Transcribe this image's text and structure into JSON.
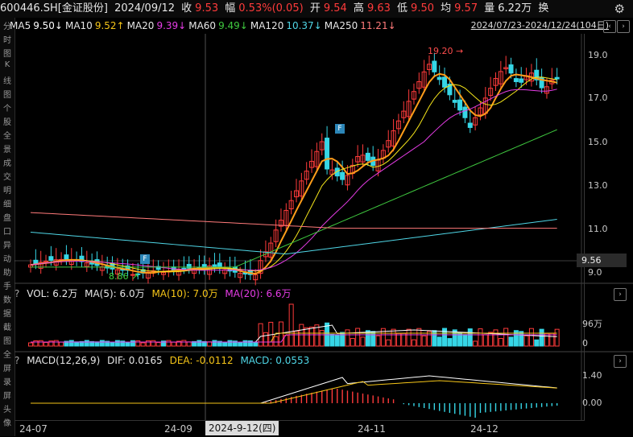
{
  "header": {
    "code": "600446.SH[金证股份]",
    "date": "2024/09/12",
    "close_label": "收",
    "close": "9.53",
    "change_label": "幅",
    "change": "0.53%(0.05)",
    "open_label": "开",
    "open": "9.54",
    "high_label": "高",
    "high": "9.63",
    "low_label": "低",
    "low": "9.50",
    "avg_label": "均",
    "avg": "9.57",
    "vol_label": "量",
    "vol": "6.22万",
    "turn_label": "换"
  },
  "ma_legend": [
    {
      "label": "MA5",
      "value": "9.50↓",
      "color": "#ffffff"
    },
    {
      "label": "MA10",
      "value": "9.52↑",
      "color": "#f5c518"
    },
    {
      "label": "MA20",
      "value": "9.39↓",
      "color": "#e53ce5"
    },
    {
      "label": "MA60",
      "value": "9.49↓",
      "color": "#3fc83f"
    },
    {
      "label": "MA120",
      "value": "10.37↓",
      "color": "#4fd6e6"
    },
    {
      "label": "MA250",
      "value": "11.21↓",
      "color": "#ff7a7a"
    }
  ],
  "date_range": "2024/07/23-2024/12/24(104日)",
  "left_tabs": [
    "分",
    "时",
    "图",
    "K",
    "线",
    "图",
    "个",
    "股",
    "全",
    "景",
    "成",
    "交",
    "明",
    "细",
    "盘",
    "口",
    "异",
    "动",
    "助",
    "手",
    "数",
    "据",
    "截",
    "图",
    "全",
    "屏",
    "录",
    "屏",
    "头",
    "像"
  ],
  "price_axis": {
    "ticks": [
      "19.0",
      "17.0",
      "15.0",
      "13.0",
      "11.0",
      "9.0"
    ],
    "current": "9.56"
  },
  "annotations": {
    "high": "19.20",
    "low": "8.86",
    "flag": "F"
  },
  "volume_panel": {
    "title": "VOL: 6.2万",
    "ma5": "MA(5): 6.0万",
    "ma10": "MA(10): 7.0万",
    "ma20": "MA(20): 6.6万",
    "tick_top": "96万",
    "tick_zero": "0"
  },
  "macd_panel": {
    "title": "MACD(12,26,9)",
    "dif": "DIF: 0.0165",
    "dea": "DEA: -0.0112",
    "macd": "MACD: 0.0553",
    "tick_top": "1.40",
    "tick_zero": "0.00"
  },
  "x_axis": {
    "labels": [
      "24-07",
      "24-09",
      "24-11",
      "24-12"
    ],
    "cursor_date": "2024-9-12(四)"
  },
  "controls": {
    "settings": "⚙",
    "scroll": "›",
    "question": "?"
  }
}
